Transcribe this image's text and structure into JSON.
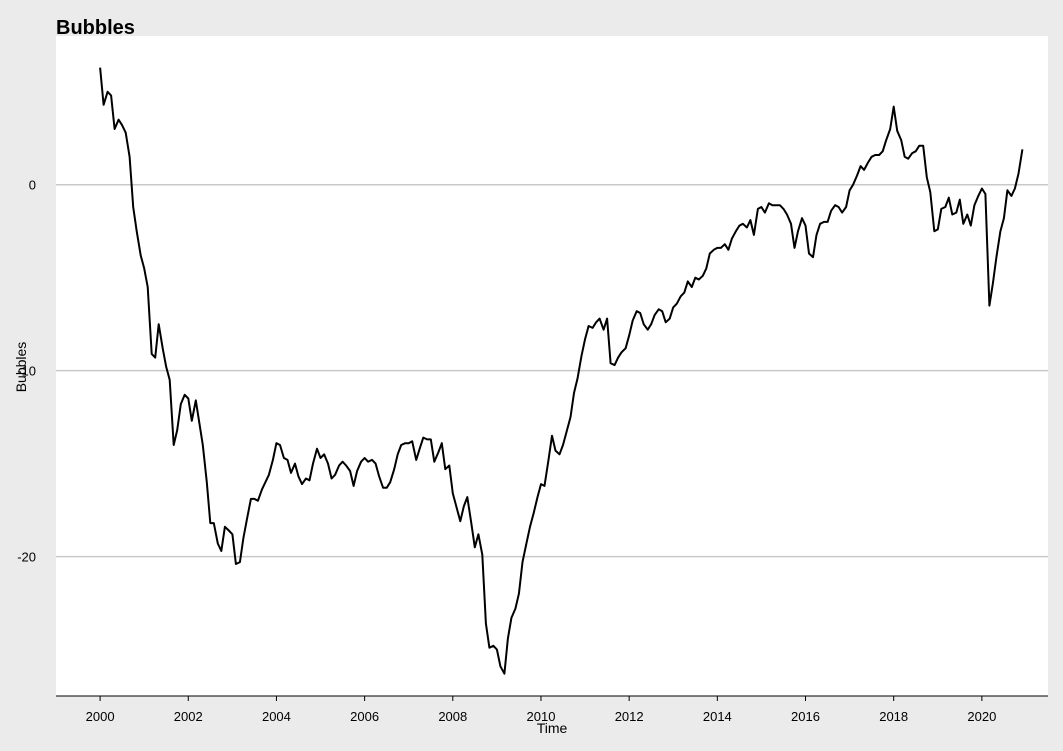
{
  "chart_data": {
    "type": "line",
    "title": "Bubbles",
    "xlabel": "Time",
    "ylabel": "Bubbles",
    "xlim": [
      1999.0,
      2021.5
    ],
    "ylim": [
      -27.5,
      8.0
    ],
    "x_ticks": [
      2000,
      2002,
      2004,
      2006,
      2008,
      2010,
      2012,
      2014,
      2016,
      2018,
      2020
    ],
    "y_ticks": [
      0,
      -10,
      -20
    ],
    "grid": {
      "horizontal": true,
      "vertical": false
    },
    "colors": {
      "background": "#ebebeb",
      "panel": "#ffffff",
      "grid": "#c8c8c8",
      "line": "#000000"
    },
    "series": [
      {
        "points": [
          [
            2000.0,
            6.3
          ],
          [
            2000.08,
            4.3
          ],
          [
            2000.17,
            5.0
          ],
          [
            2000.25,
            4.8
          ],
          [
            2000.33,
            3.0
          ],
          [
            2000.42,
            3.5
          ],
          [
            2000.5,
            3.2
          ],
          [
            2000.58,
            2.8
          ],
          [
            2000.67,
            1.5
          ],
          [
            2000.75,
            -1.2
          ],
          [
            2000.83,
            -2.5
          ],
          [
            2000.92,
            -3.8
          ],
          [
            2001.0,
            -4.5
          ],
          [
            2001.08,
            -5.5
          ],
          [
            2001.17,
            -9.1
          ],
          [
            2001.25,
            -9.3
          ],
          [
            2001.33,
            -7.5
          ],
          [
            2001.42,
            -8.8
          ],
          [
            2001.5,
            -9.8
          ],
          [
            2001.58,
            -10.5
          ],
          [
            2001.67,
            -14.0
          ],
          [
            2001.75,
            -13.2
          ],
          [
            2001.83,
            -11.8
          ],
          [
            2001.92,
            -11.3
          ],
          [
            2002.0,
            -11.5
          ],
          [
            2002.08,
            -12.7
          ],
          [
            2002.17,
            -11.6
          ],
          [
            2002.25,
            -12.8
          ],
          [
            2002.33,
            -14.0
          ],
          [
            2002.42,
            -16.0
          ],
          [
            2002.5,
            -18.2
          ],
          [
            2002.58,
            -18.2
          ],
          [
            2002.67,
            -19.3
          ],
          [
            2002.75,
            -19.7
          ],
          [
            2002.83,
            -18.4
          ],
          [
            2002.92,
            -18.6
          ],
          [
            2003.0,
            -18.8
          ],
          [
            2003.08,
            -20.4
          ],
          [
            2003.17,
            -20.3
          ],
          [
            2003.25,
            -19.0
          ],
          [
            2003.33,
            -18.0
          ],
          [
            2003.42,
            -16.9
          ],
          [
            2003.5,
            -16.9
          ],
          [
            2003.58,
            -17.0
          ],
          [
            2003.67,
            -16.4
          ],
          [
            2003.75,
            -16.0
          ],
          [
            2003.83,
            -15.6
          ],
          [
            2003.92,
            -14.8
          ],
          [
            2004.0,
            -13.9
          ],
          [
            2004.08,
            -14.0
          ],
          [
            2004.17,
            -14.7
          ],
          [
            2004.25,
            -14.8
          ],
          [
            2004.33,
            -15.5
          ],
          [
            2004.42,
            -15.0
          ],
          [
            2004.5,
            -15.7
          ],
          [
            2004.58,
            -16.1
          ],
          [
            2004.67,
            -15.8
          ],
          [
            2004.75,
            -15.9
          ],
          [
            2004.83,
            -15.0
          ],
          [
            2004.92,
            -14.2
          ],
          [
            2005.0,
            -14.7
          ],
          [
            2005.08,
            -14.5
          ],
          [
            2005.17,
            -15.0
          ],
          [
            2005.25,
            -15.8
          ],
          [
            2005.33,
            -15.6
          ],
          [
            2005.42,
            -15.1
          ],
          [
            2005.5,
            -14.9
          ],
          [
            2005.58,
            -15.1
          ],
          [
            2005.67,
            -15.4
          ],
          [
            2005.75,
            -16.2
          ],
          [
            2005.83,
            -15.4
          ],
          [
            2005.92,
            -14.9
          ],
          [
            2006.0,
            -14.7
          ],
          [
            2006.08,
            -14.9
          ],
          [
            2006.17,
            -14.8
          ],
          [
            2006.25,
            -15.0
          ],
          [
            2006.33,
            -15.7
          ],
          [
            2006.42,
            -16.3
          ],
          [
            2006.5,
            -16.3
          ],
          [
            2006.58,
            -16.0
          ],
          [
            2006.67,
            -15.3
          ],
          [
            2006.75,
            -14.5
          ],
          [
            2006.83,
            -14.0
          ],
          [
            2006.92,
            -13.9
          ],
          [
            2007.0,
            -13.9
          ],
          [
            2007.08,
            -13.8
          ],
          [
            2007.17,
            -14.8
          ],
          [
            2007.25,
            -14.2
          ],
          [
            2007.33,
            -13.6
          ],
          [
            2007.42,
            -13.7
          ],
          [
            2007.5,
            -13.7
          ],
          [
            2007.58,
            -14.9
          ],
          [
            2007.67,
            -14.4
          ],
          [
            2007.75,
            -13.9
          ],
          [
            2007.83,
            -15.3
          ],
          [
            2007.92,
            -15.1
          ],
          [
            2008.0,
            -16.6
          ],
          [
            2008.08,
            -17.3
          ],
          [
            2008.17,
            -18.1
          ],
          [
            2008.25,
            -17.3
          ],
          [
            2008.33,
            -16.8
          ],
          [
            2008.42,
            -18.2
          ],
          [
            2008.5,
            -19.5
          ],
          [
            2008.58,
            -18.8
          ],
          [
            2008.67,
            -19.9
          ],
          [
            2008.75,
            -23.6
          ],
          [
            2008.83,
            -24.9
          ],
          [
            2008.92,
            -24.8
          ],
          [
            2009.0,
            -25.0
          ],
          [
            2009.08,
            -25.9
          ],
          [
            2009.17,
            -26.3
          ],
          [
            2009.25,
            -24.4
          ],
          [
            2009.33,
            -23.3
          ],
          [
            2009.42,
            -22.8
          ],
          [
            2009.5,
            -22.0
          ],
          [
            2009.58,
            -20.3
          ],
          [
            2009.67,
            -19.3
          ],
          [
            2009.75,
            -18.4
          ],
          [
            2009.83,
            -17.7
          ],
          [
            2009.92,
            -16.8
          ],
          [
            2010.0,
            -16.1
          ],
          [
            2010.08,
            -16.2
          ],
          [
            2010.17,
            -14.8
          ],
          [
            2010.25,
            -13.5
          ],
          [
            2010.33,
            -14.3
          ],
          [
            2010.42,
            -14.5
          ],
          [
            2010.5,
            -14.0
          ],
          [
            2010.58,
            -13.3
          ],
          [
            2010.67,
            -12.5
          ],
          [
            2010.75,
            -11.2
          ],
          [
            2010.83,
            -10.4
          ],
          [
            2010.92,
            -9.2
          ],
          [
            2011.0,
            -8.3
          ],
          [
            2011.08,
            -7.6
          ],
          [
            2011.17,
            -7.7
          ],
          [
            2011.25,
            -7.4
          ],
          [
            2011.33,
            -7.2
          ],
          [
            2011.42,
            -7.8
          ],
          [
            2011.5,
            -7.2
          ],
          [
            2011.58,
            -9.6
          ],
          [
            2011.67,
            -9.7
          ],
          [
            2011.75,
            -9.3
          ],
          [
            2011.83,
            -9.0
          ],
          [
            2011.92,
            -8.8
          ],
          [
            2012.0,
            -8.1
          ],
          [
            2012.08,
            -7.3
          ],
          [
            2012.17,
            -6.8
          ],
          [
            2012.25,
            -6.9
          ],
          [
            2012.33,
            -7.5
          ],
          [
            2012.42,
            -7.8
          ],
          [
            2012.5,
            -7.5
          ],
          [
            2012.58,
            -7.0
          ],
          [
            2012.67,
            -6.7
          ],
          [
            2012.75,
            -6.8
          ],
          [
            2012.83,
            -7.4
          ],
          [
            2012.92,
            -7.2
          ],
          [
            2013.0,
            -6.6
          ],
          [
            2013.08,
            -6.4
          ],
          [
            2013.17,
            -6.0
          ],
          [
            2013.25,
            -5.8
          ],
          [
            2013.33,
            -5.2
          ],
          [
            2013.42,
            -5.5
          ],
          [
            2013.5,
            -5.0
          ],
          [
            2013.58,
            -5.1
          ],
          [
            2013.67,
            -4.9
          ],
          [
            2013.75,
            -4.5
          ],
          [
            2013.83,
            -3.7
          ],
          [
            2013.92,
            -3.5
          ],
          [
            2014.0,
            -3.4
          ],
          [
            2014.08,
            -3.4
          ],
          [
            2014.17,
            -3.2
          ],
          [
            2014.25,
            -3.5
          ],
          [
            2014.33,
            -2.9
          ],
          [
            2014.42,
            -2.5
          ],
          [
            2014.5,
            -2.2
          ],
          [
            2014.58,
            -2.1
          ],
          [
            2014.67,
            -2.3
          ],
          [
            2014.75,
            -1.9
          ],
          [
            2014.83,
            -2.7
          ],
          [
            2014.92,
            -1.3
          ],
          [
            2015.0,
            -1.2
          ],
          [
            2015.08,
            -1.5
          ],
          [
            2015.17,
            -1.0
          ],
          [
            2015.25,
            -1.1
          ],
          [
            2015.33,
            -1.1
          ],
          [
            2015.42,
            -1.1
          ],
          [
            2015.5,
            -1.3
          ],
          [
            2015.58,
            -1.6
          ],
          [
            2015.67,
            -2.1
          ],
          [
            2015.75,
            -3.4
          ],
          [
            2015.83,
            -2.5
          ],
          [
            2015.92,
            -1.8
          ],
          [
            2016.0,
            -2.2
          ],
          [
            2016.08,
            -3.7
          ],
          [
            2016.17,
            -3.9
          ],
          [
            2016.25,
            -2.7
          ],
          [
            2016.33,
            -2.1
          ],
          [
            2016.42,
            -2.0
          ],
          [
            2016.5,
            -2.0
          ],
          [
            2016.58,
            -1.4
          ],
          [
            2016.67,
            -1.1
          ],
          [
            2016.75,
            -1.2
          ],
          [
            2016.83,
            -1.5
          ],
          [
            2016.92,
            -1.2
          ],
          [
            2017.0,
            -0.3
          ],
          [
            2017.08,
            0.0
          ],
          [
            2017.17,
            0.5
          ],
          [
            2017.25,
            1.0
          ],
          [
            2017.33,
            0.8
          ],
          [
            2017.42,
            1.2
          ],
          [
            2017.5,
            1.5
          ],
          [
            2017.58,
            1.6
          ],
          [
            2017.67,
            1.6
          ],
          [
            2017.75,
            1.8
          ],
          [
            2017.83,
            2.4
          ],
          [
            2017.92,
            3.0
          ],
          [
            2018.0,
            4.2
          ],
          [
            2018.08,
            2.9
          ],
          [
            2018.17,
            2.4
          ],
          [
            2018.25,
            1.5
          ],
          [
            2018.33,
            1.4
          ],
          [
            2018.42,
            1.7
          ],
          [
            2018.5,
            1.8
          ],
          [
            2018.58,
            2.1
          ],
          [
            2018.67,
            2.1
          ],
          [
            2018.75,
            0.4
          ],
          [
            2018.83,
            -0.4
          ],
          [
            2018.92,
            -2.5
          ],
          [
            2019.0,
            -2.4
          ],
          [
            2019.08,
            -1.3
          ],
          [
            2019.17,
            -1.2
          ],
          [
            2019.25,
            -0.7
          ],
          [
            2019.33,
            -1.6
          ],
          [
            2019.42,
            -1.5
          ],
          [
            2019.5,
            -0.8
          ],
          [
            2019.58,
            -2.1
          ],
          [
            2019.67,
            -1.6
          ],
          [
            2019.75,
            -2.2
          ],
          [
            2019.83,
            -1.1
          ],
          [
            2019.92,
            -0.6
          ],
          [
            2020.0,
            -0.2
          ],
          [
            2020.08,
            -0.5
          ],
          [
            2020.17,
            -6.5
          ],
          [
            2020.25,
            -5.3
          ],
          [
            2020.33,
            -3.9
          ],
          [
            2020.42,
            -2.5
          ],
          [
            2020.5,
            -1.8
          ],
          [
            2020.58,
            -0.3
          ],
          [
            2020.67,
            -0.6
          ],
          [
            2020.75,
            -0.2
          ],
          [
            2020.83,
            0.6
          ],
          [
            2020.92,
            1.9
          ]
        ]
      }
    ]
  }
}
